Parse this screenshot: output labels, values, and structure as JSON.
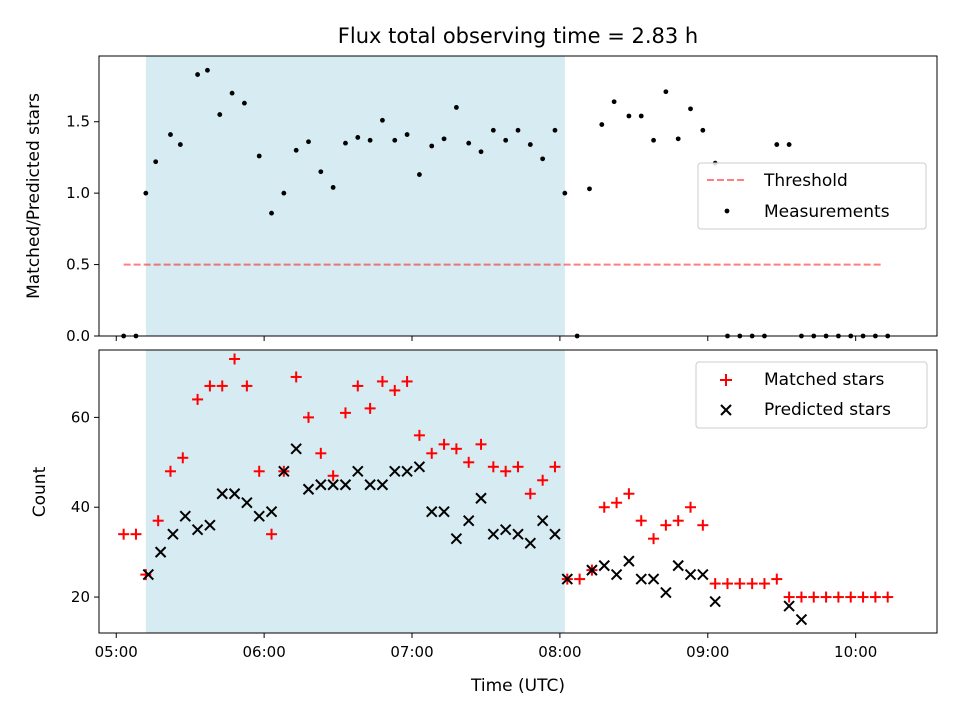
{
  "chart_data": [
    {
      "type": "scatter",
      "title": "Flux total observing time = 2.83 h",
      "xlabel": "",
      "ylabel": "Matched/Predicted stars",
      "ylim": [
        0,
        1.96
      ],
      "yticks": [
        "0.0",
        "0.5",
        "1.0",
        "1.5"
      ],
      "ytick_values": [
        0,
        0.5,
        1.0,
        1.5
      ],
      "xlim": [
        "04:53",
        "10:33"
      ],
      "xticks_values": [
        "05:00",
        "06:00",
        "07:00",
        "08:00",
        "09:00",
        "10:00"
      ],
      "shaded_span": {
        "start": "05:12",
        "end": "08:02",
        "color": "#add8e6"
      },
      "threshold": {
        "name": "Threshold",
        "value": 0.5,
        "x_start": "05:03",
        "x_end": "10:11",
        "color": "#ff0000"
      },
      "legend": {
        "placement": "center-right",
        "entries": [
          "Threshold",
          "Measurements"
        ]
      },
      "series": [
        {
          "name": "Measurements",
          "color": "#000000",
          "x": [
            "05:03",
            "05:08",
            "05:12",
            "05:16",
            "05:22",
            "05:26",
            "05:33",
            "05:37",
            "05:42",
            "05:47",
            "05:52",
            "05:58",
            "06:03",
            "06:08",
            "06:13",
            "06:18",
            "06:23",
            "06:28",
            "06:33",
            "06:38",
            "06:43",
            "06:48",
            "06:53",
            "06:58",
            "07:03",
            "07:08",
            "07:13",
            "07:18",
            "07:23",
            "07:28",
            "07:33",
            "07:38",
            "07:43",
            "07:48",
            "07:53",
            "07:58",
            "08:02",
            "08:07",
            "08:12",
            "08:17",
            "08:22",
            "08:28",
            "08:33",
            "08:38",
            "08:43",
            "08:48",
            "08:53",
            "08:58",
            "09:03",
            "09:08",
            "09:13",
            "09:18",
            "09:23",
            "09:28",
            "09:33",
            "09:38",
            "09:43",
            "09:48",
            "09:53",
            "09:58",
            "10:03",
            "10:08",
            "10:13"
          ],
          "y": [
            0,
            0,
            1.0,
            1.22,
            1.41,
            1.34,
            1.83,
            1.86,
            1.55,
            1.7,
            1.63,
            1.26,
            0.86,
            1.0,
            1.3,
            1.36,
            1.15,
            1.04,
            1.35,
            1.39,
            1.37,
            1.51,
            1.37,
            1.41,
            1.13,
            1.33,
            1.38,
            1.6,
            1.35,
            1.29,
            1.44,
            1.37,
            1.44,
            1.34,
            1.24,
            1.44,
            1.0,
            0,
            1.03,
            1.48,
            1.64,
            1.54,
            1.54,
            1.37,
            1.71,
            1.38,
            1.59,
            1.44,
            1.21,
            0,
            0,
            0,
            0,
            1.34,
            1.34,
            0,
            0,
            0,
            0,
            0,
            0,
            0,
            0
          ]
        }
      ]
    },
    {
      "type": "scatter",
      "title": "",
      "xlabel": "Time (UTC)",
      "ylabel": "Count",
      "ylim": [
        12,
        75
      ],
      "yticks": [
        "20",
        "40",
        "60"
      ],
      "ytick_values": [
        20,
        40,
        60
      ],
      "xlim": [
        "04:53",
        "10:33"
      ],
      "xticks": [
        "05:00",
        "06:00",
        "07:00",
        "08:00",
        "09:00",
        "10:00"
      ],
      "shaded_span": {
        "start": "05:12",
        "end": "08:02",
        "color": "#add8e6"
      },
      "legend": {
        "placement": "top-right",
        "entries": [
          "Matched stars",
          "Predicted stars"
        ]
      },
      "series": [
        {
          "name": "Matched stars",
          "color": "#ff0000",
          "x": [
            "05:03",
            "05:08",
            "05:12",
            "05:17",
            "05:22",
            "05:27",
            "05:33",
            "05:38",
            "05:43",
            "05:48",
            "05:53",
            "05:58",
            "06:03",
            "06:08",
            "06:13",
            "06:18",
            "06:23",
            "06:28",
            "06:33",
            "06:38",
            "06:43",
            "06:48",
            "06:53",
            "06:58",
            "07:03",
            "07:08",
            "07:13",
            "07:18",
            "07:23",
            "07:28",
            "07:33",
            "07:38",
            "07:43",
            "07:48",
            "07:53",
            "07:58",
            "08:03",
            "08:08",
            "08:13",
            "08:18",
            "08:23",
            "08:28",
            "08:33",
            "08:38",
            "08:43",
            "08:48",
            "08:53",
            "08:58",
            "09:03",
            "09:08",
            "09:13",
            "09:18",
            "09:23",
            "09:28",
            "09:33",
            "09:38",
            "09:43",
            "09:48",
            "09:53",
            "09:58",
            "10:03",
            "10:08",
            "10:13"
          ],
          "y": [
            34,
            34,
            25,
            37,
            48,
            51,
            64,
            67,
            67,
            73,
            67,
            48,
            34,
            48,
            69,
            60,
            52,
            47,
            61,
            67,
            62,
            68,
            66,
            68,
            56,
            52,
            54,
            53,
            50,
            54,
            49,
            48,
            49,
            43,
            46,
            49,
            24,
            24,
            26,
            40,
            41,
            43,
            37,
            33,
            36,
            37,
            40,
            36,
            23,
            23,
            23,
            23,
            23,
            24,
            20,
            20,
            20,
            20,
            20,
            20,
            20,
            20,
            20
          ]
        },
        {
          "name": "Predicted stars",
          "color": "#000000",
          "x": [
            "05:13",
            "05:18",
            "05:23",
            "05:28",
            "05:33",
            "05:38",
            "05:43",
            "05:48",
            "05:53",
            "05:58",
            "06:03",
            "06:08",
            "06:13",
            "06:18",
            "06:23",
            "06:28",
            "06:33",
            "06:38",
            "06:43",
            "06:48",
            "06:53",
            "06:58",
            "07:03",
            "07:08",
            "07:13",
            "07:18",
            "07:23",
            "07:28",
            "07:33",
            "07:38",
            "07:43",
            "07:48",
            "07:53",
            "07:58",
            "08:03",
            "08:13",
            "08:18",
            "08:23",
            "08:28",
            "08:33",
            "08:38",
            "08:43",
            "08:48",
            "08:53",
            "08:58",
            "09:03",
            "09:33",
            "09:38"
          ],
          "y": [
            25,
            30,
            34,
            38,
            35,
            36,
            43,
            43,
            41,
            38,
            39,
            48,
            53,
            44,
            45,
            45,
            45,
            48,
            45,
            45,
            48,
            48,
            49,
            39,
            39,
            33,
            37,
            42,
            34,
            35,
            34,
            32,
            37,
            34,
            24,
            26,
            27,
            25,
            28,
            24,
            24,
            21,
            27,
            25,
            25,
            19,
            18,
            15
          ]
        }
      ]
    }
  ]
}
